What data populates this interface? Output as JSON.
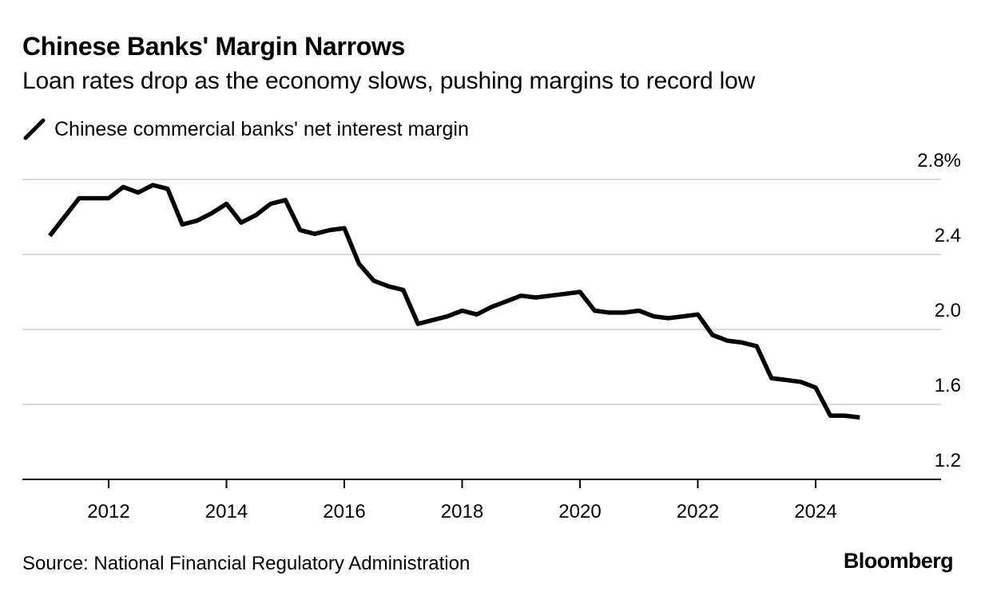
{
  "chart_data": {
    "type": "line",
    "title": "Chinese Banks' Margin Narrows",
    "subtitle": "Loan rates drop as the economy slows, pushing margins to record low",
    "legend": "Chinese commercial banks' net interest margin",
    "source": "Source: National Financial Regulatory Administration",
    "brand": "Bloomberg",
    "xlabel": "",
    "ylabel": "",
    "x_ticks": [
      "2012",
      "2014",
      "2016",
      "2018",
      "2020",
      "2022",
      "2024"
    ],
    "y_ticks": [
      "2.8%",
      "2.4",
      "2.0",
      "1.6",
      "1.2"
    ],
    "ylim": [
      1.2,
      2.8
    ],
    "xlim": [
      2010.8,
      2025.75
    ],
    "grid": true,
    "line_color": "#000000",
    "series": [
      {
        "name": "Chinese commercial banks' net interest margin",
        "x": [
          2011.0,
          2011.25,
          2011.5,
          2011.75,
          2012.0,
          2012.25,
          2012.5,
          2012.75,
          2013.0,
          2013.25,
          2013.5,
          2013.75,
          2014.0,
          2014.25,
          2014.5,
          2014.75,
          2015.0,
          2015.25,
          2015.5,
          2015.75,
          2016.0,
          2016.25,
          2016.5,
          2016.75,
          2017.0,
          2017.25,
          2017.5,
          2017.75,
          2018.0,
          2018.25,
          2018.5,
          2018.75,
          2019.0,
          2019.25,
          2019.5,
          2019.75,
          2020.0,
          2020.25,
          2020.5,
          2020.75,
          2021.0,
          2021.25,
          2021.5,
          2021.75,
          2022.0,
          2022.25,
          2022.5,
          2022.75,
          2023.0,
          2023.25,
          2023.5,
          2023.75,
          2024.0,
          2024.25,
          2024.5,
          2024.75
        ],
        "values": [
          2.5,
          2.6,
          2.7,
          2.7,
          2.7,
          2.76,
          2.73,
          2.77,
          2.75,
          2.56,
          2.58,
          2.62,
          2.67,
          2.57,
          2.61,
          2.67,
          2.69,
          2.53,
          2.51,
          2.53,
          2.54,
          2.35,
          2.26,
          2.23,
          2.21,
          2.03,
          2.05,
          2.07,
          2.1,
          2.08,
          2.12,
          2.15,
          2.18,
          2.17,
          2.18,
          2.19,
          2.2,
          2.1,
          2.09,
          2.09,
          2.1,
          2.07,
          2.06,
          2.07,
          2.08,
          1.97,
          1.94,
          1.93,
          1.91,
          1.74,
          1.73,
          1.72,
          1.69,
          1.54,
          1.54,
          1.53
        ]
      }
    ]
  }
}
